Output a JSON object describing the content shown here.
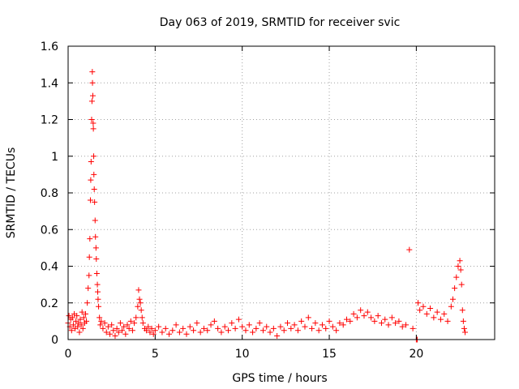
{
  "chart_data": {
    "type": "scatter",
    "title": "Day 063 of 2019, SRMTID for receiver svic",
    "xlabel": "GPS time / hours",
    "ylabel": "SRMTID / TECUs",
    "xlim": [
      0,
      24.5
    ],
    "ylim": [
      0,
      1.6
    ],
    "xticks": [
      0,
      5,
      10,
      15,
      20
    ],
    "xtick_labels": [
      "0",
      "5",
      "10",
      "15",
      "20"
    ],
    "yticks": [
      0,
      0.2,
      0.4,
      0.6,
      0.8,
      1,
      1.2,
      1.4,
      1.6
    ],
    "ytick_labels": [
      "0",
      "0.2",
      "0.4",
      "0.6",
      "0.8",
      "1",
      "1.2",
      "1.4",
      "1.6"
    ],
    "grid": true,
    "marker": "+",
    "color": "#ff0000",
    "series": [
      {
        "name": "SRMTID",
        "points": [
          [
            0.0,
            0.09
          ],
          [
            0.05,
            0.13
          ],
          [
            0.1,
            0.07
          ],
          [
            0.15,
            0.11
          ],
          [
            0.2,
            0.05
          ],
          [
            0.25,
            0.12
          ],
          [
            0.3,
            0.08
          ],
          [
            0.35,
            0.14
          ],
          [
            0.4,
            0.06
          ],
          [
            0.45,
            0.1
          ],
          [
            0.5,
            0.13
          ],
          [
            0.55,
            0.07
          ],
          [
            0.6,
            0.09
          ],
          [
            0.65,
            0.04
          ],
          [
            0.7,
            0.11
          ],
          [
            0.75,
            0.08
          ],
          [
            0.8,
            0.15
          ],
          [
            0.85,
            0.06
          ],
          [
            0.9,
            0.12
          ],
          [
            0.95,
            0.09
          ],
          [
            1.0,
            0.14
          ],
          [
            1.05,
            0.1
          ],
          [
            1.1,
            0.2
          ],
          [
            1.15,
            0.28
          ],
          [
            1.2,
            0.35
          ],
          [
            1.22,
            0.45
          ],
          [
            1.25,
            0.55
          ],
          [
            1.28,
            0.76
          ],
          [
            1.3,
            0.87
          ],
          [
            1.32,
            0.97
          ],
          [
            1.35,
            1.2
          ],
          [
            1.37,
            1.3
          ],
          [
            1.39,
            1.46
          ],
          [
            1.4,
            1.4
          ],
          [
            1.42,
            1.33
          ],
          [
            1.44,
            1.18
          ],
          [
            1.45,
            1.15
          ],
          [
            1.47,
            1.0
          ],
          [
            1.48,
            0.9
          ],
          [
            1.5,
            0.82
          ],
          [
            1.52,
            0.75
          ],
          [
            1.55,
            0.65
          ],
          [
            1.57,
            0.56
          ],
          [
            1.6,
            0.5
          ],
          [
            1.62,
            0.44
          ],
          [
            1.65,
            0.36
          ],
          [
            1.68,
            0.3
          ],
          [
            1.7,
            0.26
          ],
          [
            1.72,
            0.22
          ],
          [
            1.75,
            0.18
          ],
          [
            1.8,
            0.12
          ],
          [
            1.85,
            0.08
          ],
          [
            1.9,
            0.1
          ],
          [
            2.0,
            0.06
          ],
          [
            2.1,
            0.09
          ],
          [
            2.2,
            0.04
          ],
          [
            2.3,
            0.07
          ],
          [
            2.4,
            0.03
          ],
          [
            2.5,
            0.08
          ],
          [
            2.6,
            0.05
          ],
          [
            2.7,
            0.02
          ],
          [
            2.8,
            0.06
          ],
          [
            2.9,
            0.04
          ],
          [
            3.0,
            0.09
          ],
          [
            3.1,
            0.05
          ],
          [
            3.2,
            0.07
          ],
          [
            3.3,
            0.03
          ],
          [
            3.4,
            0.08
          ],
          [
            3.5,
            0.06
          ],
          [
            3.6,
            0.1
          ],
          [
            3.7,
            0.05
          ],
          [
            3.8,
            0.09
          ],
          [
            3.9,
            0.12
          ],
          [
            4.0,
            0.18
          ],
          [
            4.05,
            0.27
          ],
          [
            4.1,
            0.22
          ],
          [
            4.15,
            0.2
          ],
          [
            4.2,
            0.16
          ],
          [
            4.25,
            0.12
          ],
          [
            4.3,
            0.09
          ],
          [
            4.4,
            0.06
          ],
          [
            4.5,
            0.05
          ],
          [
            4.6,
            0.07
          ],
          [
            4.7,
            0.04
          ],
          [
            4.8,
            0.06
          ],
          [
            4.9,
            0.03
          ],
          [
            5.0,
            0.05
          ],
          [
            5.2,
            0.07
          ],
          [
            5.4,
            0.04
          ],
          [
            5.6,
            0.06
          ],
          [
            5.8,
            0.03
          ],
          [
            6.0,
            0.05
          ],
          [
            6.2,
            0.08
          ],
          [
            6.4,
            0.04
          ],
          [
            6.6,
            0.06
          ],
          [
            6.8,
            0.03
          ],
          [
            7.0,
            0.07
          ],
          [
            7.2,
            0.05
          ],
          [
            7.4,
            0.09
          ],
          [
            7.6,
            0.04
          ],
          [
            7.8,
            0.06
          ],
          [
            8.0,
            0.05
          ],
          [
            8.2,
            0.08
          ],
          [
            8.4,
            0.1
          ],
          [
            8.6,
            0.06
          ],
          [
            8.8,
            0.04
          ],
          [
            9.0,
            0.07
          ],
          [
            9.2,
            0.05
          ],
          [
            9.4,
            0.09
          ],
          [
            9.6,
            0.06
          ],
          [
            9.8,
            0.11
          ],
          [
            10.0,
            0.07
          ],
          [
            10.2,
            0.05
          ],
          [
            10.4,
            0.08
          ],
          [
            10.6,
            0.04
          ],
          [
            10.8,
            0.06
          ],
          [
            11.0,
            0.09
          ],
          [
            11.2,
            0.05
          ],
          [
            11.4,
            0.07
          ],
          [
            11.6,
            0.04
          ],
          [
            11.8,
            0.06
          ],
          [
            12.0,
            0.02
          ],
          [
            12.2,
            0.07
          ],
          [
            12.4,
            0.05
          ],
          [
            12.6,
            0.09
          ],
          [
            12.8,
            0.06
          ],
          [
            13.0,
            0.08
          ],
          [
            13.2,
            0.05
          ],
          [
            13.4,
            0.1
          ],
          [
            13.6,
            0.07
          ],
          [
            13.8,
            0.12
          ],
          [
            14.0,
            0.06
          ],
          [
            14.2,
            0.09
          ],
          [
            14.4,
            0.05
          ],
          [
            14.6,
            0.08
          ],
          [
            14.8,
            0.06
          ],
          [
            15.0,
            0.1
          ],
          [
            15.2,
            0.07
          ],
          [
            15.4,
            0.05
          ],
          [
            15.6,
            0.09
          ],
          [
            15.8,
            0.08
          ],
          [
            16.0,
            0.11
          ],
          [
            16.2,
            0.1
          ],
          [
            16.4,
            0.14
          ],
          [
            16.6,
            0.12
          ],
          [
            16.8,
            0.16
          ],
          [
            17.0,
            0.13
          ],
          [
            17.2,
            0.15
          ],
          [
            17.4,
            0.12
          ],
          [
            17.6,
            0.1
          ],
          [
            17.8,
            0.13
          ],
          [
            18.0,
            0.09
          ],
          [
            18.2,
            0.11
          ],
          [
            18.4,
            0.08
          ],
          [
            18.6,
            0.12
          ],
          [
            18.8,
            0.09
          ],
          [
            19.0,
            0.1
          ],
          [
            19.2,
            0.07
          ],
          [
            19.4,
            0.08
          ],
          [
            19.6,
            0.49
          ],
          [
            19.8,
            0.06
          ],
          [
            20.0,
            0.0
          ],
          [
            20.05,
            0.0
          ],
          [
            20.1,
            0.2
          ],
          [
            20.2,
            0.16
          ],
          [
            20.4,
            0.18
          ],
          [
            20.6,
            0.14
          ],
          [
            20.8,
            0.17
          ],
          [
            21.0,
            0.12
          ],
          [
            21.2,
            0.15
          ],
          [
            21.4,
            0.11
          ],
          [
            21.6,
            0.14
          ],
          [
            21.8,
            0.1
          ],
          [
            22.0,
            0.18
          ],
          [
            22.1,
            0.22
          ],
          [
            22.2,
            0.28
          ],
          [
            22.3,
            0.34
          ],
          [
            22.4,
            0.4
          ],
          [
            22.5,
            0.43
          ],
          [
            22.55,
            0.38
          ],
          [
            22.6,
            0.3
          ],
          [
            22.65,
            0.16
          ],
          [
            22.7,
            0.1
          ],
          [
            22.75,
            0.06
          ],
          [
            22.8,
            0.04
          ]
        ]
      }
    ]
  }
}
